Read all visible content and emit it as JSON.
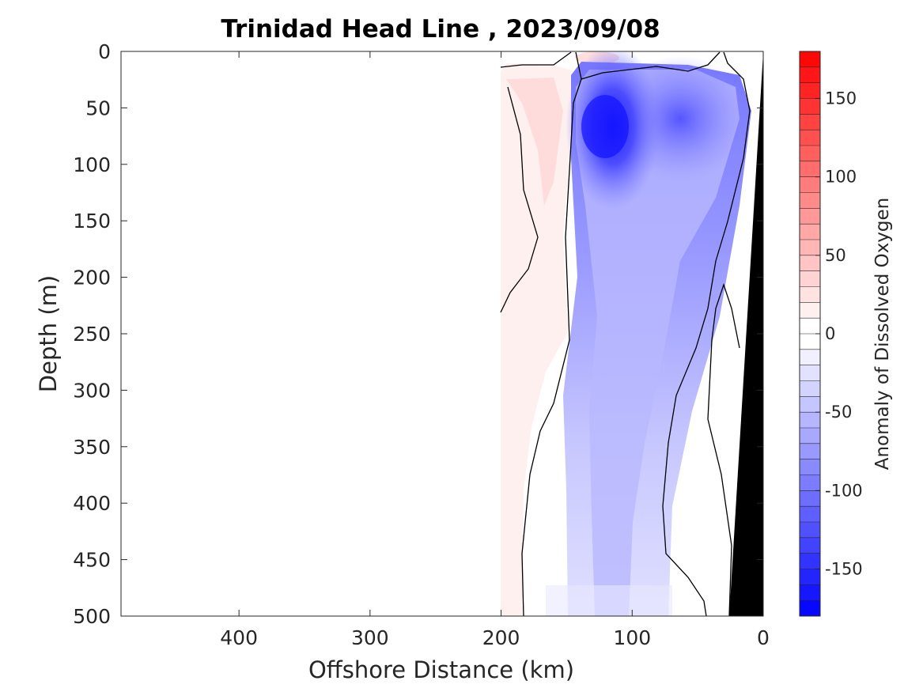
{
  "chart_data": {
    "type": "heatmap",
    "title": "Trinidad Head Line , 2023/09/08",
    "xlabel": "Offshore Distance (km)",
    "ylabel": "Depth (m)",
    "xlim": [
      490,
      0
    ],
    "ylim": [
      0,
      500
    ],
    "x_ticks": [
      400,
      300,
      200,
      100,
      0
    ],
    "y_ticks": [
      0,
      50,
      100,
      150,
      200,
      250,
      300,
      350,
      400,
      450,
      500
    ],
    "grid": false,
    "colorbar": {
      "label": "Anomaly of Dissolved Oxygen",
      "range": [
        -180,
        180
      ],
      "level_step": 10,
      "ticks": [
        150,
        100,
        50,
        0,
        -50,
        -100,
        -150
      ],
      "low_color": "#0000ff",
      "zero_color": "#ffffff",
      "high_color": "#ff0000"
    },
    "data_coverage_km": [
      0,
      200
    ],
    "bathymetry_color": "#000000",
    "features": [
      {
        "name": "negative anomaly core",
        "x_km": 115,
        "depth_m": 70,
        "value": -160
      },
      {
        "name": "secondary negative core",
        "x_km": 50,
        "depth_m": 60,
        "value": -115
      },
      {
        "name": "positive anomaly tongue",
        "x_km": 170,
        "depth_m": 80,
        "value": 25
      }
    ]
  }
}
